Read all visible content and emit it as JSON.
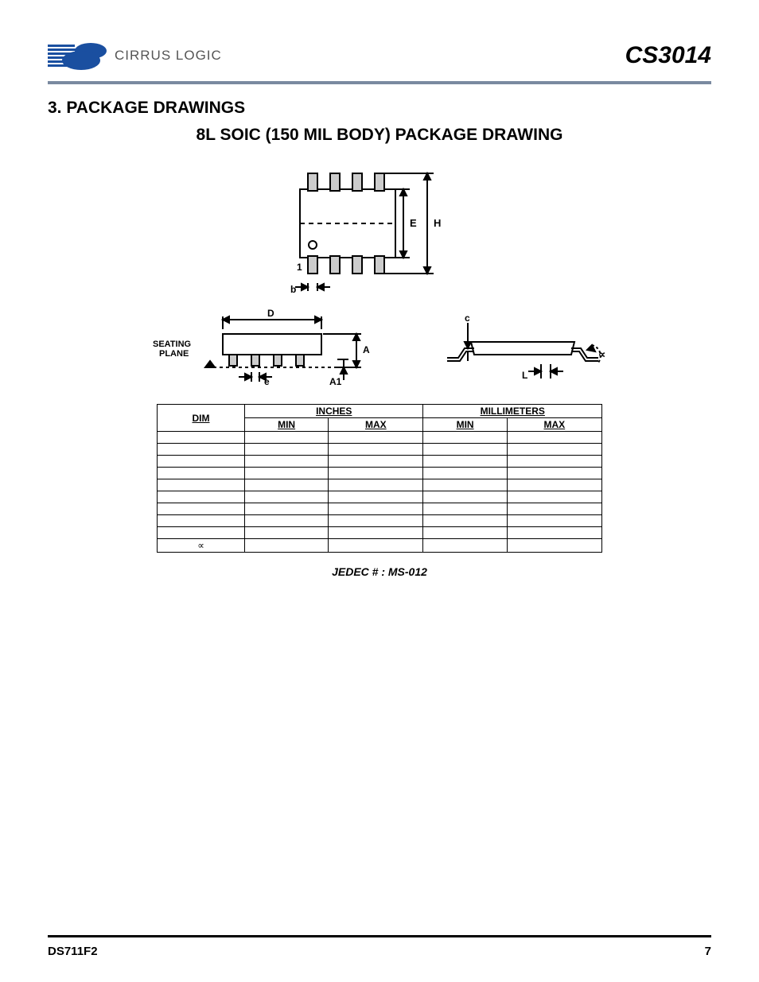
{
  "header": {
    "logo_text": "CIRRUS LOGIC",
    "part_number": "CS3014",
    "logo_color": "#1a4fa0",
    "rule_color": "#7a8aa0"
  },
  "section": {
    "heading": "3.  PACKAGE DRAWINGS",
    "drawing_title": "8L SOIC (150 MIL BODY) PACKAGE DRAWING"
  },
  "diagram_top": {
    "type": "package-top-view",
    "labels": {
      "E": "E",
      "H": "H",
      "pin1": "1",
      "b": "b"
    },
    "body_fill": "#ffffff",
    "pin_fill": "#cccccc",
    "stroke": "#000000",
    "stroke_width": 2
  },
  "diagram_side": {
    "type": "package-side-view",
    "labels": {
      "seating": "SEATING\nPLANE",
      "D": "D",
      "A": "A",
      "A1": "A1",
      "e": "e"
    },
    "body_fill": "#ffffff",
    "pin_fill": "#cccccc",
    "stroke": "#000000",
    "stroke_width": 2
  },
  "diagram_end": {
    "type": "package-end-view",
    "labels": {
      "c": "c",
      "L": "L",
      "alpha": "∝"
    },
    "body_fill": "#ffffff",
    "stroke": "#000000",
    "stroke_width": 2
  },
  "table": {
    "type": "table",
    "header_group_inches": "INCHES",
    "header_group_mm": "MILLIMETERS",
    "col_dim": "DIM",
    "col_min": "MIN",
    "col_max": "MAX",
    "rows": [
      {
        "dim": "",
        "in_min": "",
        "in_max": "",
        "mm_min": "",
        "mm_max": ""
      },
      {
        "dim": "",
        "in_min": "",
        "in_max": "",
        "mm_min": "",
        "mm_max": ""
      },
      {
        "dim": "",
        "in_min": "",
        "in_max": "",
        "mm_min": "",
        "mm_max": ""
      },
      {
        "dim": "",
        "in_min": "",
        "in_max": "",
        "mm_min": "",
        "mm_max": ""
      },
      {
        "dim": "",
        "in_min": "",
        "in_max": "",
        "mm_min": "",
        "mm_max": ""
      },
      {
        "dim": "",
        "in_min": "",
        "in_max": "",
        "mm_min": "",
        "mm_max": ""
      },
      {
        "dim": "",
        "in_min": "",
        "in_max": "",
        "mm_min": "",
        "mm_max": ""
      },
      {
        "dim": "",
        "in_min": "",
        "in_max": "",
        "mm_min": "",
        "mm_max": ""
      },
      {
        "dim": "",
        "in_min": "",
        "in_max": "",
        "mm_min": "",
        "mm_max": ""
      },
      {
        "dim": "∝",
        "in_min": "",
        "in_max": "",
        "mm_min": "",
        "mm_max": ""
      }
    ],
    "border_color": "#000000",
    "font_size": 12
  },
  "jedec": "JEDEC # : MS-012",
  "footer": {
    "doc_id": "DS711F2",
    "page_no": "7",
    "rule_color": "#000000"
  }
}
